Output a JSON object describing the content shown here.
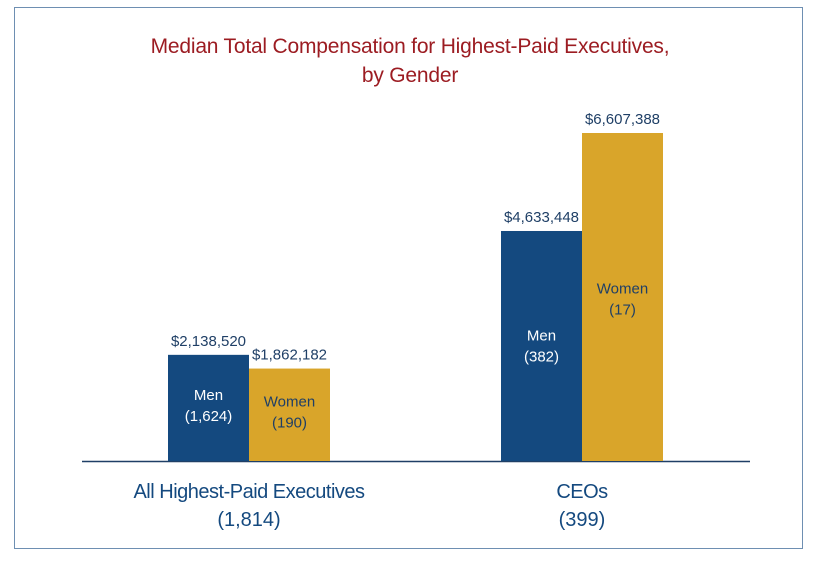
{
  "colors": {
    "men": "#14497f",
    "women": "#d9a52a",
    "title": "#9c1c22",
    "baseline": "#1f3f66",
    "frame": "#6e8fb2"
  },
  "chart_data": {
    "type": "bar",
    "title_line1": "Median Total Compensation for Highest-Paid Executives,",
    "title_line2": "by Gender",
    "categories": [
      {
        "line1": "All Highest-Paid Executives",
        "line2": "(1,814)"
      },
      {
        "line1": "CEOs",
        "line2": "(399)"
      }
    ],
    "series": [
      {
        "key": "men",
        "values": [
          2138520,
          4633448
        ],
        "value_labels": [
          "$2,138,520",
          "$4,633,448"
        ],
        "inner_labels": [
          [
            "Men",
            "(1,624)"
          ],
          [
            "Men",
            "(382)"
          ]
        ]
      },
      {
        "key": "women",
        "values": [
          1862182,
          6607388
        ],
        "value_labels": [
          "$1,862,182",
          "$6,607,388"
        ],
        "inner_labels": [
          [
            "Women",
            "(190)"
          ],
          [
            "Women",
            "(17)"
          ]
        ]
      }
    ],
    "ylim": [
      0,
      6607388
    ],
    "grid": false,
    "legend": "none"
  }
}
